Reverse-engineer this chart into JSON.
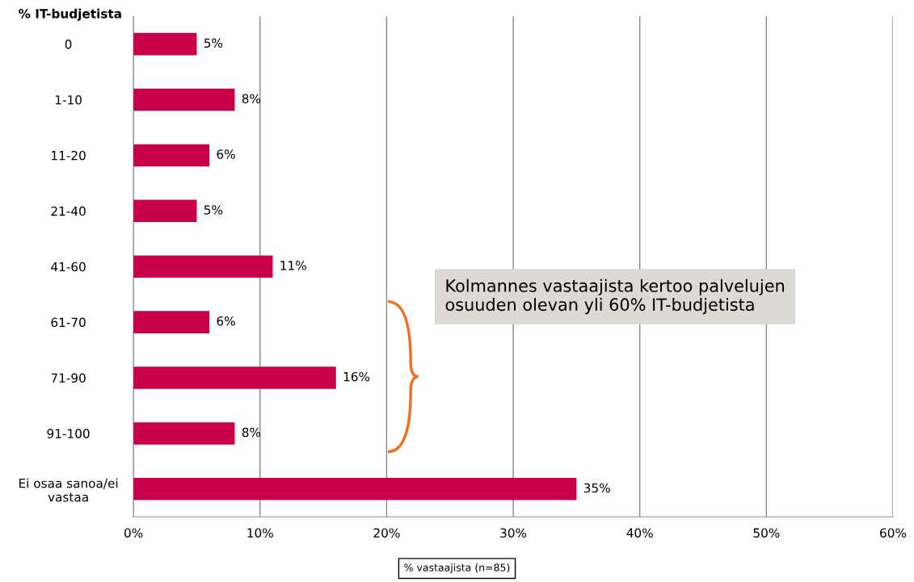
{
  "chart_data": {
    "type": "bar",
    "orientation": "horizontal",
    "ylabel": "% IT-budjetista",
    "xlabel": "% vastaajista (n=85)",
    "categories": [
      "0",
      "1-10",
      "11-20",
      "21-40",
      "41-60",
      "61-70",
      "71-90",
      "91-100",
      "Ei osaa sanoa/ei\nvastaa"
    ],
    "values": [
      5,
      8,
      6,
      5,
      11,
      6,
      16,
      8,
      35
    ],
    "value_labels": [
      "5%",
      "8%",
      "6%",
      "5%",
      "11%",
      "6%",
      "16%",
      "8%",
      "35%"
    ],
    "color": "#c8004a",
    "xlim": [
      0,
      60
    ],
    "xticks": [
      {
        "value": 0,
        "label": "0%"
      },
      {
        "value": 10,
        "label": "10%"
      },
      {
        "value": 20,
        "label": "20%"
      },
      {
        "value": 30,
        "label": "30%"
      },
      {
        "value": 40,
        "label": "40%"
      },
      {
        "value": 50,
        "label": "50%"
      },
      {
        "value": 60,
        "label": "60%"
      }
    ],
    "grid": "x",
    "annotations": [
      "Kolmannes vastaajista kertoo palvelujen\nosuuden olevan yli 60% IT-budjetista"
    ]
  }
}
